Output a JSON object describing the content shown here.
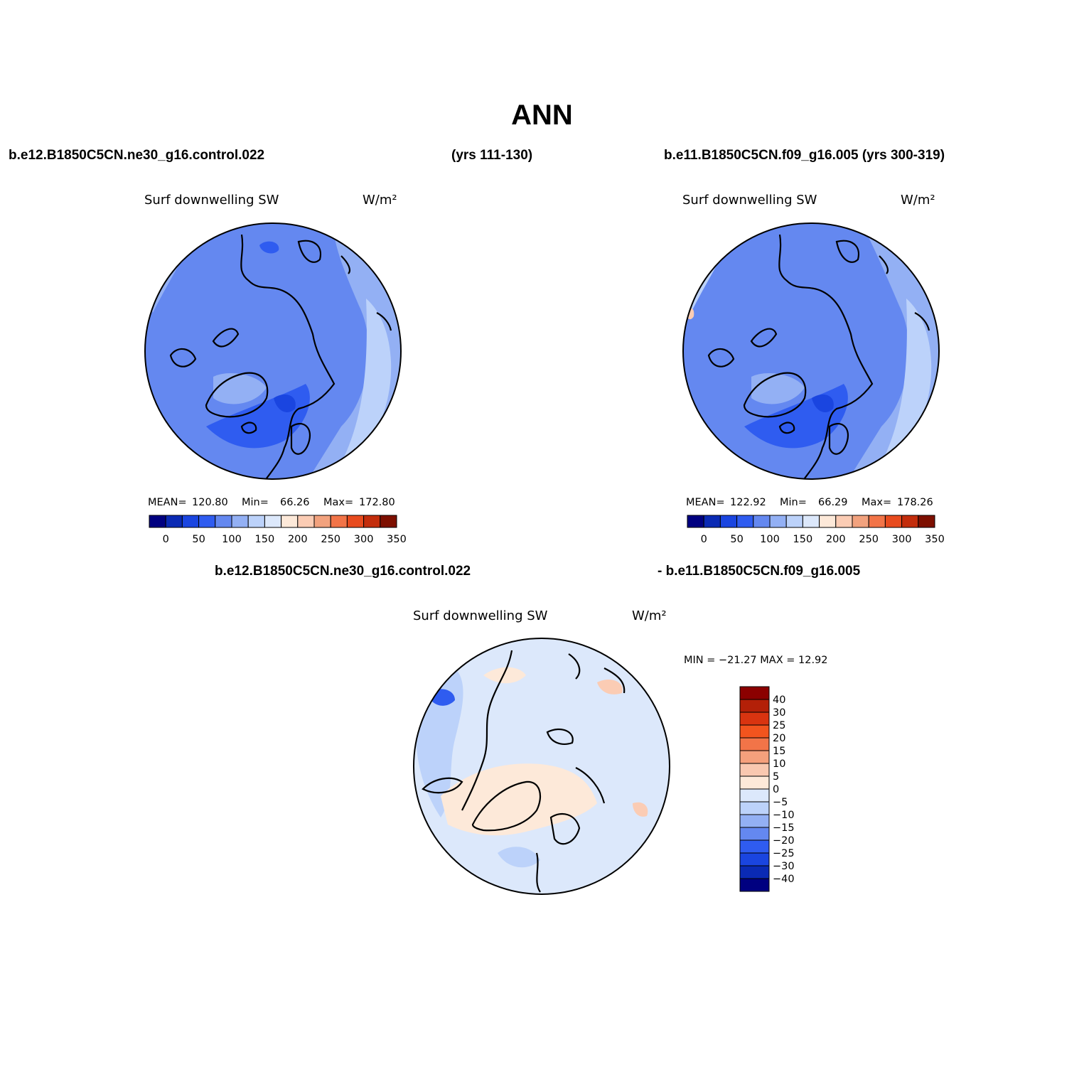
{
  "title": "ANN",
  "header": {
    "case1": "b.e12.B1850C5CN.ne30_g16.control.022",
    "years1": "(yrs 111-130)",
    "case2": "b.e11.B1850C5CN.f09_g16.005 (yrs 300-319)",
    "diff_case1": "b.e12.B1850C5CN.ne30_g16.control.022",
    "diff_case2": "- b.e11.B1850C5CN.f09_g16.005"
  },
  "panels": [
    {
      "id": "top-left",
      "variable": "Surf downwelling SW",
      "units": "W/m²",
      "stats": {
        "mean_label": "MEAN=",
        "mean": "120.80",
        "min_label": "Min=",
        "min": "66.26",
        "max_label": "Max=",
        "max": "172.80"
      }
    },
    {
      "id": "top-right",
      "variable": "Surf downwelling SW",
      "units": "W/m²",
      "stats": {
        "mean_label": "MEAN=",
        "mean": "122.92",
        "min_label": "Min=",
        "min": "66.29",
        "max_label": "Max=",
        "max": "178.26"
      }
    },
    {
      "id": "difference",
      "variable": "Surf downwelling SW",
      "units": "W/m²",
      "stats_text": "MIN = −21.27 MAX =   12.92"
    }
  ],
  "colorbar_horizontal": {
    "colors": [
      "#000080",
      "#0a2ab4",
      "#1a45e0",
      "#2f5cf0",
      "#6488f0",
      "#93b0f4",
      "#bcd2fa",
      "#dce8fb",
      "#fde9d9",
      "#fbccb4",
      "#f2a27e",
      "#f27448",
      "#e84b1e",
      "#c32d0c",
      "#7d0f00"
    ],
    "labels": [
      "0",
      "50",
      "100",
      "150",
      "200",
      "250",
      "300",
      "350"
    ]
  },
  "colorbar_vertical": {
    "colors": [
      "#8b0000",
      "#b32008",
      "#d93410",
      "#f2541e",
      "#f27448",
      "#f5a07c",
      "#f9c8b0",
      "#fde9d9",
      "#dce8fb",
      "#bcd2fa",
      "#93b0f4",
      "#6488f0",
      "#2f5cf0",
      "#1a45e0",
      "#0a2ab4",
      "#000080"
    ],
    "labels": [
      "40",
      "30",
      "25",
      "20",
      "15",
      "10",
      "5",
      "0",
      "−5",
      "−10",
      "−15",
      "−20",
      "−25",
      "−30",
      "−40"
    ]
  }
}
